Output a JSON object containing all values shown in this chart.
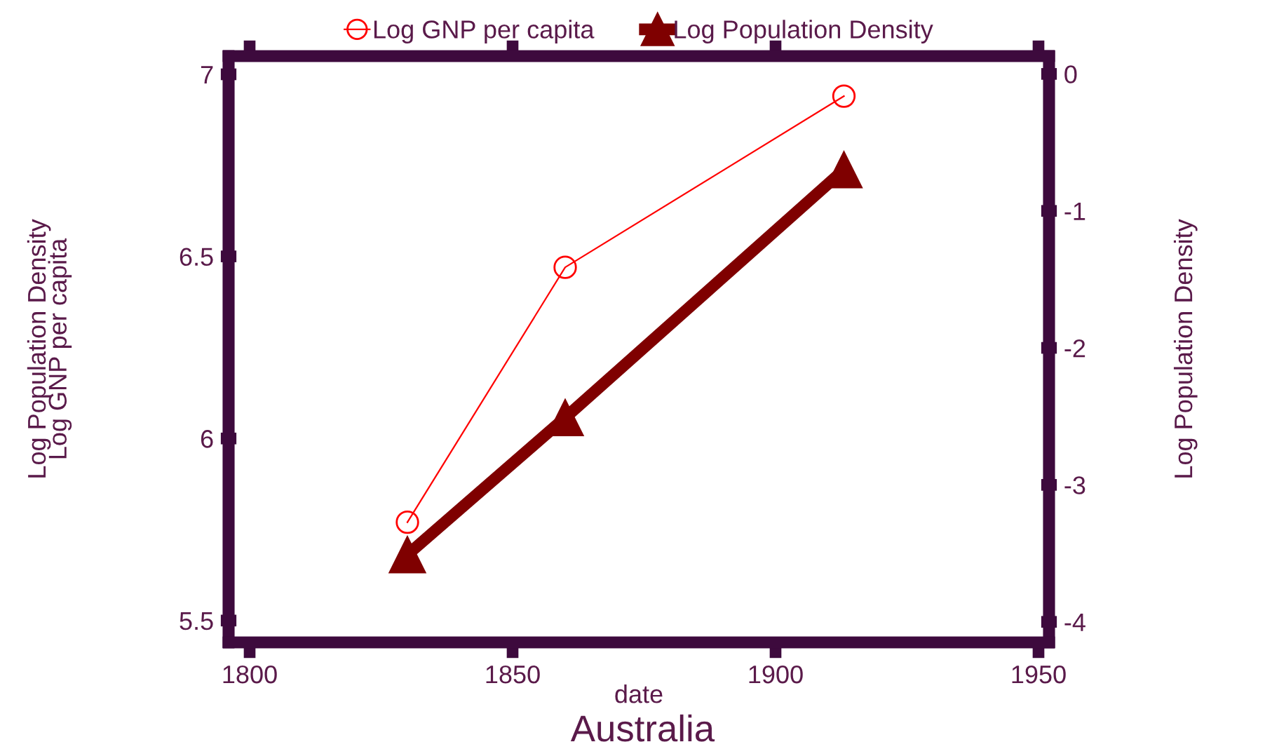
{
  "chart_data": {
    "type": "line",
    "title": "Australia",
    "xlabel": "date",
    "ylabel": "Log Population Density\nLog GNP per capita",
    "y2label": "Log Population Density",
    "x": [
      1830,
      1860,
      1913
    ],
    "series": [
      {
        "name": "Log GNP per capita",
        "color": "#ff0000",
        "values": [
          5.77,
          6.47,
          6.94
        ],
        "marker": "circle"
      },
      {
        "name": "Log Population Density",
        "color": "#7f0000",
        "values": [
          -3.51,
          -2.51,
          -0.7
        ],
        "marker": "triangle",
        "axis": "y2"
      }
    ],
    "xlim": [
      1796,
      1952
    ],
    "xticks": [
      1800,
      1850,
      1900,
      1950
    ],
    "ylim": [
      5.44,
      7.05
    ],
    "yticks": [
      5.5,
      6,
      6.5,
      7
    ],
    "y2lim": [
      -4.15,
      0.13
    ],
    "y2ticks": [
      -4,
      -3,
      -2,
      -1,
      0
    ],
    "grid": false,
    "legend": "top"
  }
}
